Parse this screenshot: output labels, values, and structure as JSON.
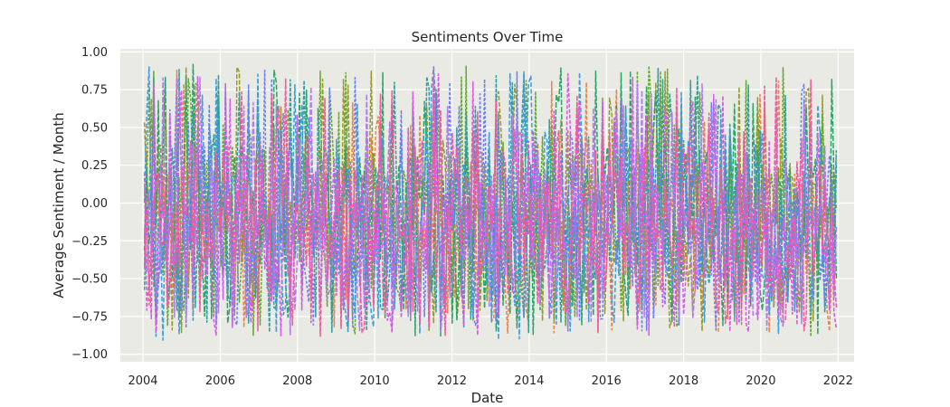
{
  "chart_data": {
    "type": "line",
    "title": "Sentiments Over Time",
    "xlabel": "Date",
    "ylabel": "Average Sentiment / Month",
    "xlim": [
      "2003-06-01",
      "2022-06-01"
    ],
    "ylim": [
      -1.05,
      1.02
    ],
    "x_ticks": [
      "2004",
      "2006",
      "2008",
      "2010",
      "2012",
      "2014",
      "2016",
      "2018",
      "2020",
      "2022"
    ],
    "y_ticks": [
      "1.00",
      "0.75",
      "0.50",
      "0.25",
      "0.00",
      "−0.25",
      "−0.50",
      "−0.75",
      "−1.00"
    ],
    "y_tick_values": [
      1.0,
      0.75,
      0.5,
      0.25,
      0.0,
      -0.25,
      -0.5,
      -0.75,
      -1.0
    ],
    "x_range": [
      "2004-01-15",
      "2021-12-15"
    ],
    "y_range": [
      -0.95,
      0.92
    ],
    "series_center": -0.12,
    "grid": true,
    "background": "#eaeae5",
    "series": [
      {
        "color": "#e8834a",
        "dash": "4,2",
        "values": [
          -0.91,
          0.9
        ]
      },
      {
        "color": "#9a9a2a",
        "dash": "5,2",
        "values": [
          -0.9,
          0.9
        ]
      },
      {
        "color": "#62a92e",
        "dash": "3,1.5",
        "values": [
          -0.93,
          0.91
        ]
      },
      {
        "color": "#2aa466",
        "dash": "6,2",
        "values": [
          -0.94,
          0.92
        ]
      },
      {
        "color": "#2f9fa0",
        "dash": "4,1.5",
        "values": [
          -0.92,
          0.9
        ]
      },
      {
        "color": "#3b9ce0",
        "dash": "5,2.5",
        "values": [
          -0.95,
          0.91
        ]
      },
      {
        "color": "#6b7df0",
        "dash": "3,2",
        "values": [
          -0.9,
          0.88
        ]
      },
      {
        "color": "#b27cf0",
        "dash": "6,2",
        "values": [
          -0.93,
          0.87
        ]
      },
      {
        "color": "#d957e6",
        "dash": "4,2",
        "values": [
          -0.94,
          0.86
        ]
      },
      {
        "color": "#f05a9e",
        "dash": "5,1.5",
        "values": [
          -0.92,
          0.89
        ]
      }
    ]
  }
}
